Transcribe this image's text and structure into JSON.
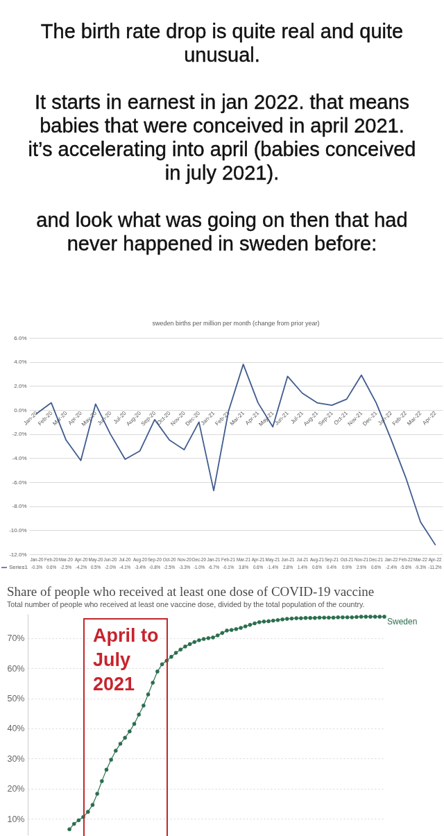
{
  "chart_data": [
    {
      "type": "other",
      "annotations": [
        "The birth rate drop is quite real and quite unusual.",
        "It starts in earnest in jan 2022. that means babies that were conceived in april 2021. it’s accelerating into april (babies conceived in july 2021).",
        "and look what was going on then that had never happened in sweden before:"
      ]
    },
    {
      "type": "line",
      "title": "sweden births per million per month (change from prior year)",
      "categories": [
        "Jan-20",
        "Feb-20",
        "Mar-20",
        "Apr-20",
        "May-20",
        "Jun-20",
        "Jul-20",
        "Aug-20",
        "Sep-20",
        "Oct-20",
        "Nov-20",
        "Dec-20",
        "Jan-21",
        "Feb-21",
        "Mar-21",
        "Apr-21",
        "May-21",
        "Jun-21",
        "Jul-21",
        "Aug-21",
        "Sep-21",
        "Oct-21",
        "Nov-21",
        "Dec-21",
        "Jan-22",
        "Feb-22",
        "Mar-22",
        "Apr-22"
      ],
      "series": [
        {
          "name": "Series1",
          "color": "#3f5b8e",
          "values": [
            -0.3,
            0.6,
            -2.5,
            -4.2,
            0.5,
            -2.0,
            -4.1,
            -3.4,
            -0.8,
            -2.5,
            -3.3,
            -1.0,
            -6.7,
            -0.1,
            3.8,
            0.6,
            -1.4,
            2.8,
            1.4,
            0.6,
            0.4,
            0.9,
            2.9,
            0.6,
            -2.4,
            -5.6,
            -9.3,
            -11.2
          ],
          "value_labels": [
            "-0.3%",
            "0.6%",
            "-2.5%",
            "-4.2%",
            "0.5%",
            "-2.0%",
            "-4.1%",
            "-3.4%",
            "-0.8%",
            "-2.5%",
            "-3.3%",
            "-1.0%",
            "-6.7%",
            "-0.1%",
            "3.8%",
            "0.6%",
            "-1.4%",
            "2.8%",
            "1.4%",
            "0.6%",
            "0.4%",
            "0.9%",
            "2.9%",
            "0.6%",
            "-2.4%",
            "-5.6%",
            "-9.3%",
            "-11.2%"
          ]
        }
      ],
      "ylim": [
        -12,
        6
      ],
      "yticks": [
        {
          "value": 6,
          "label": "6.0%"
        },
        {
          "value": 4,
          "label": "4.0%"
        },
        {
          "value": 2,
          "label": "2.0%"
        },
        {
          "value": 0,
          "label": "0.0%"
        },
        {
          "value": -2,
          "label": "-2.0%"
        },
        {
          "value": -4,
          "label": "-4.0%"
        },
        {
          "value": -6,
          "label": "-6.0%"
        },
        {
          "value": -8,
          "label": "-8.0%"
        },
        {
          "value": -10,
          "label": "-10.0%"
        },
        {
          "value": -12,
          "label": "-12.0%"
        }
      ],
      "grid": "y",
      "legend": "bottom"
    },
    {
      "type": "line",
      "title": "Share of people who received at least one dose of COVID-19 vaccine",
      "subtitle": "Total number of people who received at least one vaccine dose, divided by the total population of the country.",
      "categories": [
        null,
        null,
        null,
        null,
        null,
        null,
        null,
        null,
        null,
        null,
        null,
        null,
        null,
        null,
        null,
        null,
        null,
        null,
        null,
        null,
        null,
        null,
        null,
        null,
        null,
        null,
        null,
        null,
        null,
        null,
        null,
        null,
        null,
        null,
        null,
        null,
        null,
        null,
        null,
        null,
        null,
        null,
        null,
        null,
        null,
        null,
        null,
        null,
        null,
        null,
        null,
        null,
        null,
        null,
        null,
        null,
        null,
        null,
        null,
        null,
        null,
        null,
        null,
        null,
        null,
        null,
        null,
        null,
        null,
        null,
        null,
        null,
        null,
        null,
        null,
        null,
        null,
        null
      ],
      "series": [
        {
          "name": "Sweden",
          "color": "#2b6e4f",
          "values": [
            null,
            null,
            null,
            null,
            null,
            null,
            null,
            null,
            null,
            6.5,
            8.3,
            9.5,
            10.6,
            12.3,
            14.6,
            18.3,
            22.5,
            26.3,
            29.6,
            32.6,
            34.9,
            36.9,
            39.0,
            41.5,
            44.6,
            47.6,
            51.3,
            55.2,
            58.9,
            61.3,
            62.5,
            63.8,
            65.1,
            66.2,
            67.2,
            68.0,
            68.7,
            69.3,
            69.7,
            70.0,
            70.2,
            70.9,
            71.7,
            72.5,
            72.7,
            73.0,
            73.4,
            73.9,
            74.4,
            74.9,
            75.3,
            75.5,
            75.6,
            75.8,
            76.0,
            76.2,
            76.4,
            76.5,
            76.6,
            76.6,
            76.7,
            76.7,
            76.7,
            76.8,
            76.8,
            76.8,
            76.8,
            76.9,
            76.9,
            76.9,
            76.9,
            77.0,
            77.1,
            77.1,
            77.1,
            77.1,
            77.1,
            77.1
          ]
        }
      ],
      "ylim": [
        4.5,
        78
      ],
      "yticks": [
        {
          "value": 10,
          "label": "10%"
        },
        {
          "value": 20,
          "label": "20%"
        },
        {
          "value": 30,
          "label": "30%"
        },
        {
          "value": 40,
          "label": "40%"
        },
        {
          "value": 50,
          "label": "50%"
        },
        {
          "value": 60,
          "label": "60%"
        },
        {
          "value": 70,
          "label": "70%"
        }
      ],
      "grid": "y",
      "marker": "circle",
      "tick_labels": "y",
      "annotations": [
        "April to July 2021"
      ]
    }
  ]
}
